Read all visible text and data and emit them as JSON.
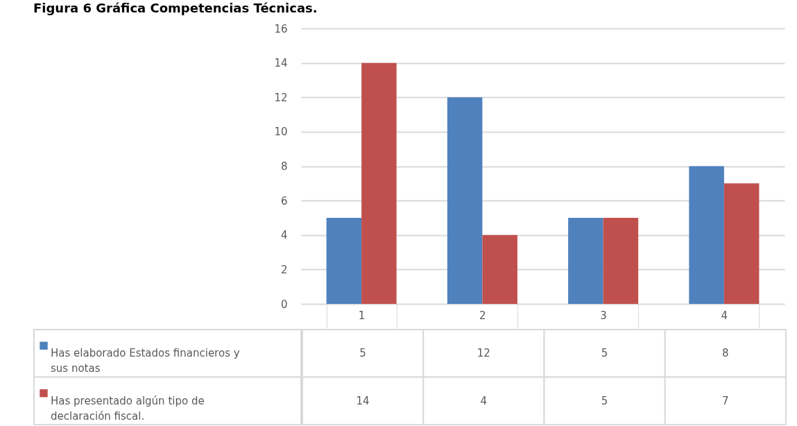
{
  "chart_data": {
    "type": "bar",
    "title": "Figura 6 Gráfica Competencias Técnicas.",
    "categories": [
      "1",
      "2",
      "3",
      "4"
    ],
    "series": [
      {
        "name": "Has elaborado Estados financieros y sus notas",
        "color": "#4f81bd",
        "values": [
          5,
          12,
          5,
          8
        ]
      },
      {
        "name": "Has presentado algún tipo de declaración fiscal.",
        "color": "#c0504d",
        "values": [
          14,
          4,
          5,
          7
        ]
      }
    ],
    "ylim": [
      0,
      16
    ],
    "yticks": [
      0,
      2,
      4,
      6,
      8,
      10,
      12,
      14,
      16
    ],
    "grid": "y",
    "legend": "bottom",
    "data_labels": true
  }
}
